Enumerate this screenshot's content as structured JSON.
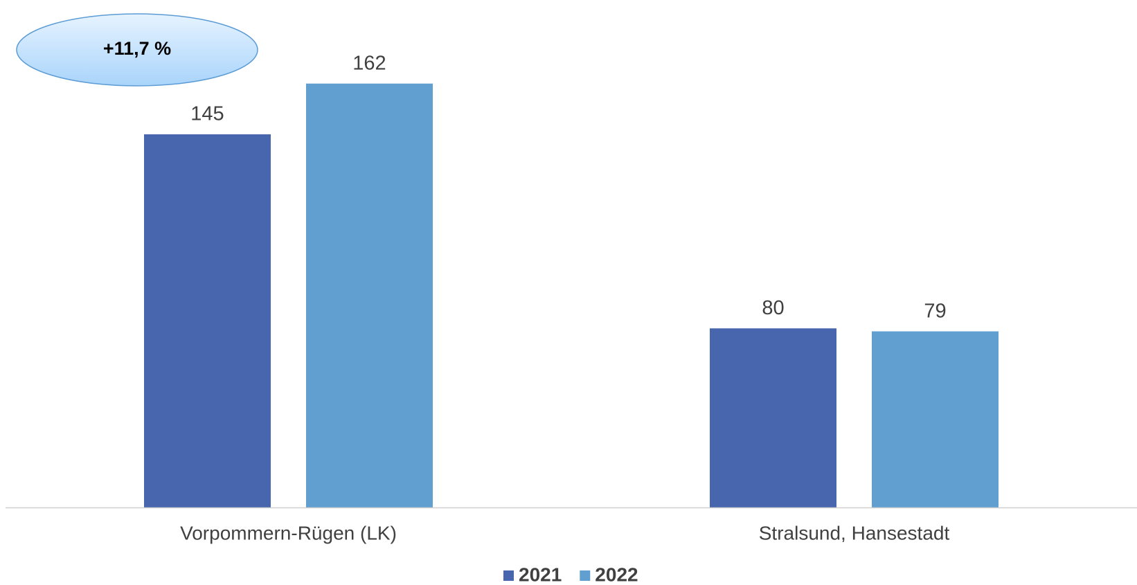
{
  "chart_data": {
    "type": "bar",
    "categories": [
      "Vorpommern-Rügen (LK)",
      "Stralsund, Hansestadt"
    ],
    "series": [
      {
        "name": "2021",
        "color": "#4866ad",
        "values": [
          145,
          80
        ]
      },
      {
        "name": "2022",
        "color": "#629fd1",
        "values": [
          162,
          79
        ]
      }
    ],
    "ylim": [
      20,
      190
    ],
    "annotation": "+11,7 %",
    "legend": "bottom"
  }
}
